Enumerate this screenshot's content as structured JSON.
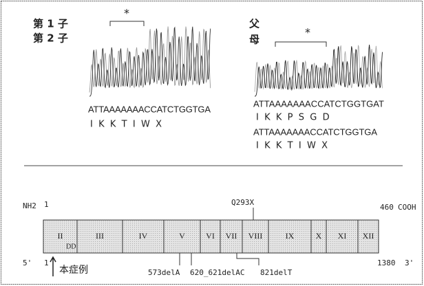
{
  "left_panel": {
    "labels": [
      "第 1 子",
      "第 2 子"
    ],
    "marker": "*",
    "sequence": "ATTAAAAAAACCATCTGGTGA",
    "amino_acids": "I  K  K  T  I  W  X"
  },
  "right_panel": {
    "labels": [
      "父",
      "母"
    ],
    "marker": "*",
    "sequences": [
      {
        "sequence": "ATTAAAAAAACCATCTGGTGAT",
        "amino_acids": "I  K  K  P  S  G  D"
      },
      {
        "sequence": "ATTAAAAAAACCATCTGGTGA",
        "amino_acids": "I  K  K  T  I  W  X"
      }
    ]
  },
  "protein": {
    "n_term": "NH2",
    "start": 1,
    "end": 460,
    "c_term": "COOH",
    "mutation_top": "Q293X",
    "domains": [
      "II",
      "III",
      "IV",
      "V",
      "VI",
      "VII",
      "VIII",
      "IX",
      "X",
      "XI",
      "XII"
    ],
    "dd": "DD"
  },
  "cdna": {
    "five": "5'",
    "start": 1,
    "end": 1380,
    "three": "3'",
    "case_label": "本症例",
    "mutations": [
      "573delA",
      "620_621delAC",
      "821delT"
    ]
  }
}
